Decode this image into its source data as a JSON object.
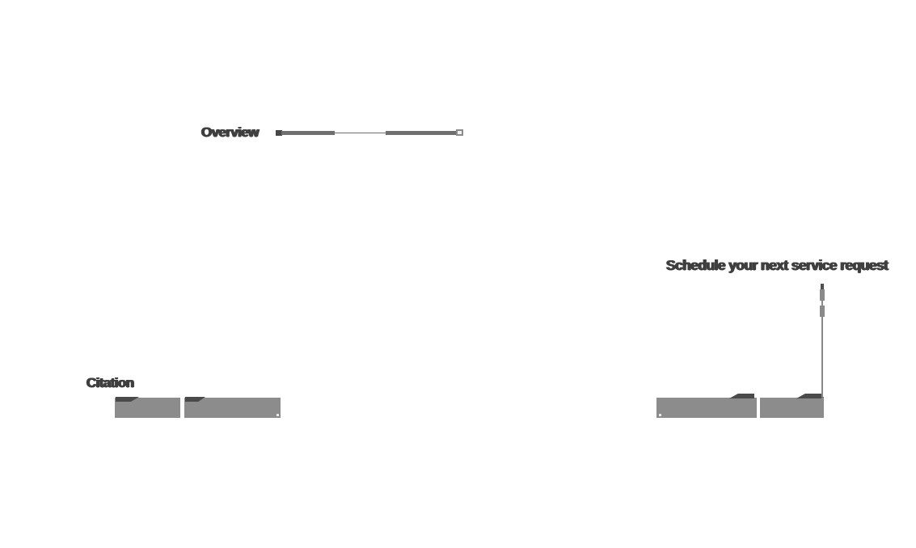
{
  "page": {
    "background": "#ffffff",
    "note": "sparsely rendered page with smeared bold labels, segmented slider lines and blank gray buttons"
  },
  "colors": {
    "text": "#3f3f3f",
    "bar": "#6f6f6f",
    "bar_start_cap": "#474747",
    "handle_border": "#8a8a8a",
    "handle_fill": "#f0f0f0",
    "connector": "#8a8a8a",
    "connector_nub": "#4f4f4f",
    "button": "#8c8c8c",
    "button_cap": "#4a4a4a",
    "button_dot": "#e8e8e8"
  },
  "overview": {
    "label": "Overview"
  },
  "request": {
    "heading": "Schedule your next service request"
  },
  "citation": {
    "label": "Citation"
  },
  "left_buttons": [
    {
      "label": ""
    },
    {
      "label": ""
    }
  ],
  "right_buttons": [
    {
      "label": ""
    },
    {
      "label": ""
    }
  ]
}
